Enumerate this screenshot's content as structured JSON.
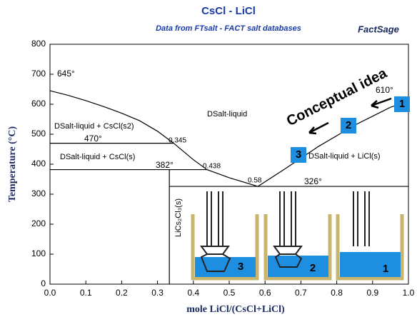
{
  "chart_data": {
    "type": "line",
    "title": "CsCl - LiCl",
    "subtitle": "Data from FTsalt - FACT salt databases",
    "logo": "FactSage",
    "x_label": "mole LiCl/(CsCl+LiCl)",
    "y_label": "Temperature (°C)",
    "xlim": [
      0,
      1
    ],
    "ylim": [
      0,
      800
    ],
    "xticks": [
      {
        "value": 0,
        "label": "0.0"
      },
      {
        "value": 0.1,
        "label": "0.1"
      },
      {
        "value": 0.2,
        "label": "0.2"
      },
      {
        "value": 0.3,
        "label": "0.3"
      },
      {
        "value": 0.4,
        "label": "0.4"
      },
      {
        "value": 0.5,
        "label": "0.5"
      },
      {
        "value": 0.6,
        "label": "0.6"
      },
      {
        "value": 0.7,
        "label": "0.7"
      },
      {
        "value": 0.8,
        "label": "0.8"
      },
      {
        "value": 0.9,
        "label": "0.9"
      },
      {
        "value": 1,
        "label": "1.0"
      }
    ],
    "yticks": [
      0,
      100,
      200,
      300,
      400,
      500,
      600,
      700,
      800
    ],
    "series": [
      {
        "color": "#000000",
        "x": [
          0,
          0.05,
          0.1,
          0.15,
          0.2,
          0.25,
          0.3,
          0.345,
          0.4,
          0.438,
          0.5,
          0.58,
          0.65,
          0.7,
          0.75,
          0.8,
          0.85,
          0.9,
          0.95,
          1
        ],
        "values": [
          645,
          630,
          612,
          592,
          570,
          545,
          510,
          470,
          415,
          382,
          355,
          326,
          380,
          420,
          460,
          495,
          530,
          560,
          590,
          610
        ]
      },
      {
        "color": "#000000",
        "x": [
          0,
          0.345
        ],
        "values": [
          470,
          470
        ]
      },
      {
        "color": "#000000",
        "x": [
          0,
          0.438
        ],
        "values": [
          382,
          382
        ]
      },
      {
        "color": "#000000",
        "x": [
          0.333,
          1
        ],
        "values": [
          326,
          326
        ]
      },
      {
        "color": "#000000",
        "x": [
          0.333,
          0.333
        ],
        "values": [
          0,
          382
        ]
      }
    ],
    "annotations": [
      "645°",
      "470°",
      "382°",
      "326°",
      "610°",
      "0.345",
      "0.438",
      "0.58",
      "DSalt-liquid",
      "DSalt-liquid + CsCl(s2)",
      "DSalt-liquid + CsCl(s)",
      "DSalt-liquid + LiCl(s)",
      "LiCs₂Cl₃(s)",
      "Conceptual idea",
      "1",
      "2",
      "3",
      "3",
      "2",
      "1"
    ]
  }
}
